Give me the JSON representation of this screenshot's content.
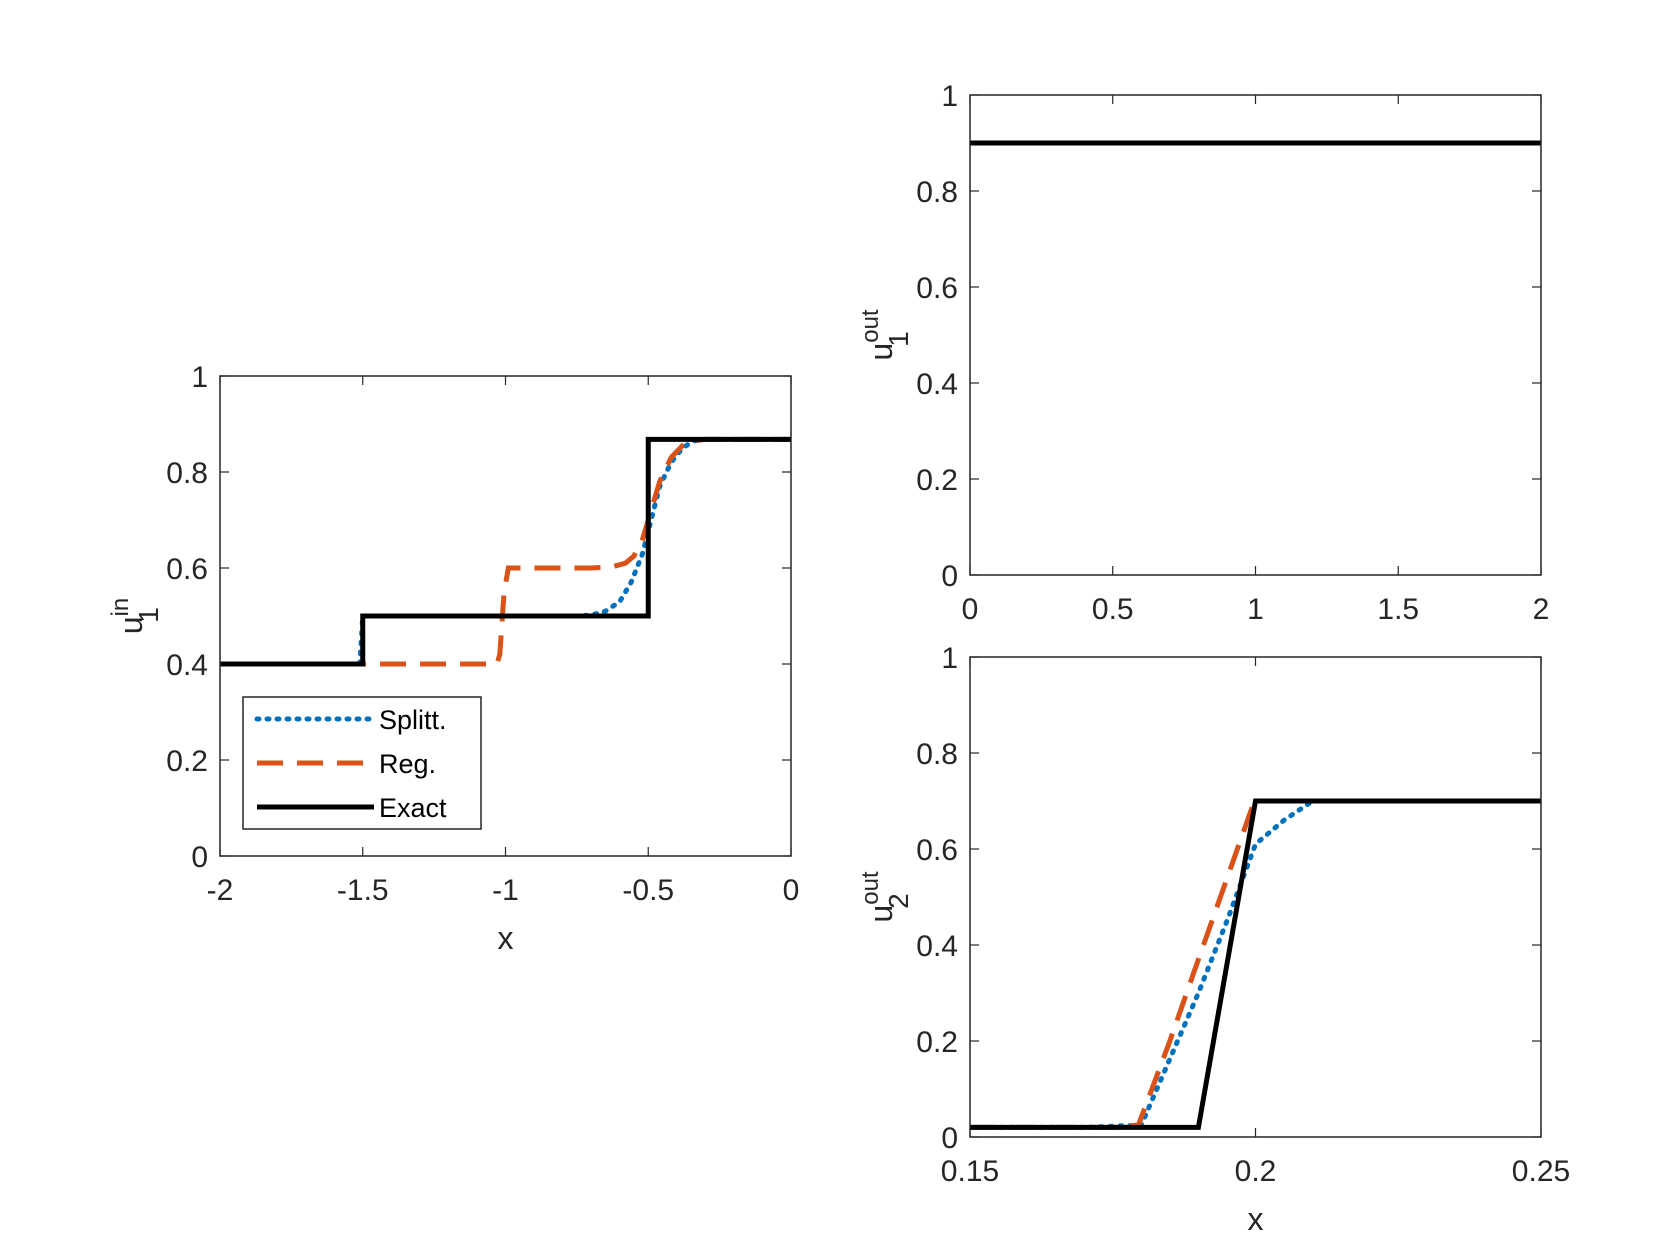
{
  "colors": {
    "splitt": "#0072BD",
    "reg": "#D95319",
    "exact": "#000000",
    "axes": "#262626"
  },
  "chart_data": [
    {
      "id": "left",
      "type": "line",
      "xlabel": "x",
      "ylabel": {
        "base": "u",
        "sup": "in",
        "sub": "1"
      },
      "xlim": [
        -2,
        0
      ],
      "ylim": [
        0,
        1
      ],
      "xticks": [
        -2,
        -1.5,
        -1,
        -0.5,
        0
      ],
      "xtick_labels": [
        "-2",
        "-1.5",
        "-1",
        "-0.5",
        "0"
      ],
      "yticks": [
        0,
        0.2,
        0.4,
        0.6,
        0.8,
        1
      ],
      "ytick_labels": [
        "0",
        "0.2",
        "0.4",
        "0.6",
        "0.8",
        "1"
      ],
      "legend": {
        "position": "bottom-left",
        "entries": [
          "Splitt.",
          "Reg.",
          "Exact"
        ]
      },
      "series": [
        {
          "name": "Splitt.",
          "style": "dotted",
          "color": "#0072BD",
          "x": [
            -2,
            -1.51,
            -1.505,
            -1.5,
            -1.49,
            -0.75,
            -0.7,
            -0.65,
            -0.6,
            -0.56,
            -0.52,
            -0.49,
            -0.46,
            -0.42,
            -0.38,
            -0.34,
            -0.3,
            0
          ],
          "y": [
            0.4,
            0.4,
            0.45,
            0.5,
            0.5,
            0.5,
            0.502,
            0.51,
            0.53,
            0.57,
            0.63,
            0.7,
            0.77,
            0.82,
            0.85,
            0.865,
            0.868,
            0.868
          ]
        },
        {
          "name": "Reg.",
          "style": "dashed",
          "color": "#D95319",
          "x": [
            -2,
            -1.03,
            -1.02,
            -1.005,
            -0.99,
            -0.8,
            -0.7,
            -0.63,
            -0.58,
            -0.55,
            -0.52,
            -0.49,
            -0.46,
            -0.42,
            -0.38,
            -0.34,
            -0.3,
            0
          ],
          "y": [
            0.4,
            0.4,
            0.42,
            0.55,
            0.6,
            0.6,
            0.6,
            0.602,
            0.61,
            0.625,
            0.66,
            0.72,
            0.78,
            0.83,
            0.855,
            0.865,
            0.868,
            0.868
          ]
        },
        {
          "name": "Exact",
          "style": "solid",
          "color": "#000000",
          "x": [
            -2,
            -1.5,
            -1.5,
            -0.5,
            -0.5,
            0
          ],
          "y": [
            0.4,
            0.4,
            0.5,
            0.5,
            0.868,
            0.868
          ]
        }
      ]
    },
    {
      "id": "top-right",
      "type": "line",
      "xlabel": "",
      "ylabel": {
        "base": "u",
        "sup": "out",
        "sub": "1"
      },
      "xlim": [
        0,
        2
      ],
      "ylim": [
        0,
        1
      ],
      "xticks": [
        0,
        0.5,
        1,
        1.5,
        2
      ],
      "xtick_labels": [
        "0",
        "0.5",
        "1",
        "1.5",
        "2"
      ],
      "yticks": [
        0,
        0.2,
        0.4,
        0.6,
        0.8,
        1
      ],
      "ytick_labels": [
        "0",
        "0.2",
        "0.4",
        "0.6",
        "0.8",
        "1"
      ],
      "series": [
        {
          "name": "Splitt.",
          "style": "dotted",
          "color": "#0072BD",
          "x": [
            0,
            2
          ],
          "y": [
            0.9,
            0.9
          ]
        },
        {
          "name": "Reg.",
          "style": "dashed",
          "color": "#D95319",
          "x": [
            0,
            2
          ],
          "y": [
            0.9,
            0.9
          ]
        },
        {
          "name": "Exact",
          "style": "solid",
          "color": "#000000",
          "x": [
            0,
            2
          ],
          "y": [
            0.9,
            0.9
          ]
        }
      ]
    },
    {
      "id": "bottom-right",
      "type": "line",
      "xlabel": "x",
      "ylabel": {
        "base": "u",
        "sup": "out",
        "sub": "2"
      },
      "xlim": [
        0.15,
        0.25
      ],
      "ylim": [
        0,
        1
      ],
      "xticks": [
        0.15,
        0.2,
        0.25
      ],
      "xtick_labels": [
        "0.15",
        "0.2",
        "0.25"
      ],
      "yticks": [
        0,
        0.2,
        0.4,
        0.6,
        0.8,
        1
      ],
      "ytick_labels": [
        "0",
        "0.2",
        "0.4",
        "0.6",
        "0.8",
        "1"
      ],
      "series": [
        {
          "name": "Splitt.",
          "style": "dotted",
          "color": "#0072BD",
          "x": [
            0.15,
            0.17,
            0.18,
            0.19,
            0.195,
            0.2,
            0.205,
            0.21,
            0.25
          ],
          "y": [
            0.02,
            0.02,
            0.025,
            0.3,
            0.45,
            0.61,
            0.66,
            0.7,
            0.7
          ]
        },
        {
          "name": "Reg.",
          "style": "dashed",
          "color": "#D95319",
          "x": [
            0.15,
            0.175,
            0.1795,
            0.185,
            0.19,
            0.1995,
            0.2,
            0.25
          ],
          "y": [
            0.02,
            0.02,
            0.025,
            0.2,
            0.37,
            0.69,
            0.7,
            0.7
          ]
        },
        {
          "name": "Exact",
          "style": "solid",
          "color": "#000000",
          "x": [
            0.15,
            0.19,
            0.2,
            0.25
          ],
          "y": [
            0.02,
            0.02,
            0.7,
            0.7
          ]
        }
      ]
    }
  ]
}
